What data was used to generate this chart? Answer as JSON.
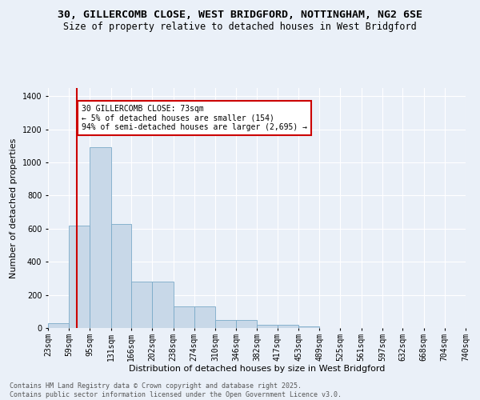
{
  "title_line1": "30, GILLERCOMB CLOSE, WEST BRIDGFORD, NOTTINGHAM, NG2 6SE",
  "title_line2": "Size of property relative to detached houses in West Bridgford",
  "xlabel": "Distribution of detached houses by size in West Bridgford",
  "ylabel": "Number of detached properties",
  "footer_line1": "Contains HM Land Registry data © Crown copyright and database right 2025.",
  "footer_line2": "Contains public sector information licensed under the Open Government Licence v3.0.",
  "bins": [
    23,
    59,
    95,
    131,
    166,
    202,
    238,
    274,
    310,
    346,
    382,
    417,
    453,
    489,
    525,
    561,
    597,
    632,
    668,
    704,
    740
  ],
  "bin_labels": [
    "23sqm",
    "59sqm",
    "95sqm",
    "131sqm",
    "166sqm",
    "202sqm",
    "238sqm",
    "274sqm",
    "310sqm",
    "346sqm",
    "382sqm",
    "417sqm",
    "453sqm",
    "489sqm",
    "525sqm",
    "561sqm",
    "597sqm",
    "632sqm",
    "668sqm",
    "704sqm",
    "740sqm"
  ],
  "values": [
    30,
    620,
    1090,
    630,
    280,
    280,
    130,
    130,
    50,
    50,
    20,
    20,
    10,
    0,
    0,
    0,
    0,
    0,
    0,
    0
  ],
  "bar_color": "#c8d8e8",
  "bar_edge_color": "#7aaac8",
  "property_line_x": 73,
  "annotation_text": "30 GILLERCOMB CLOSE: 73sqm\n← 5% of detached houses are smaller (154)\n94% of semi-detached houses are larger (2,695) →",
  "annotation_box_color": "#ffffff",
  "annotation_box_edge_color": "#cc0000",
  "vline_color": "#cc0000",
  "ylim": [
    0,
    1450
  ],
  "background_color": "#eaf0f8",
  "grid_color": "#ffffff",
  "title_fontsize": 9.5,
  "subtitle_fontsize": 8.5,
  "axis_label_fontsize": 8,
  "tick_fontsize": 7,
  "footer_fontsize": 6
}
